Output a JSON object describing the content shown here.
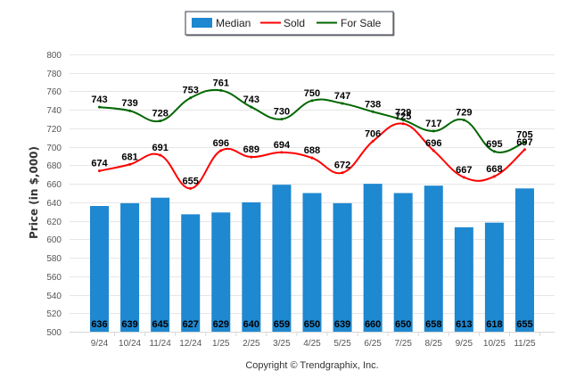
{
  "chart_data": {
    "type": "bar",
    "title": "",
    "xlabel": "",
    "ylabel": "Price (in $,000)",
    "ylim": [
      500,
      800
    ],
    "yticks": [
      500,
      520,
      540,
      560,
      580,
      600,
      620,
      640,
      660,
      680,
      700,
      720,
      740,
      760,
      780,
      800
    ],
    "grid": true,
    "legend_position": "top-center",
    "categories": [
      "9/24",
      "10/24",
      "11/24",
      "12/24",
      "1/25",
      "2/25",
      "3/25",
      "4/25",
      "5/25",
      "6/25",
      "7/25",
      "8/25",
      "9/25",
      "10/25",
      "11/25"
    ],
    "series": [
      {
        "name": "Median",
        "type": "bar",
        "color": "#1e88d0",
        "values": [
          636,
          639,
          645,
          627,
          629,
          640,
          659,
          650,
          639,
          660,
          650,
          658,
          613,
          618,
          655
        ]
      },
      {
        "name": "Sold",
        "type": "line",
        "color": "#ff0000",
        "values": [
          674,
          681,
          691,
          655,
          696,
          689,
          694,
          688,
          672,
          706,
          725,
          696,
          667,
          668,
          697
        ]
      },
      {
        "name": "For Sale",
        "type": "line",
        "color": "#006600",
        "values": [
          743,
          739,
          728,
          753,
          761,
          743,
          730,
          750,
          747,
          738,
          729,
          717,
          729,
          695,
          705
        ]
      }
    ],
    "footer": "Copyright © Trendgraphix, Inc."
  }
}
